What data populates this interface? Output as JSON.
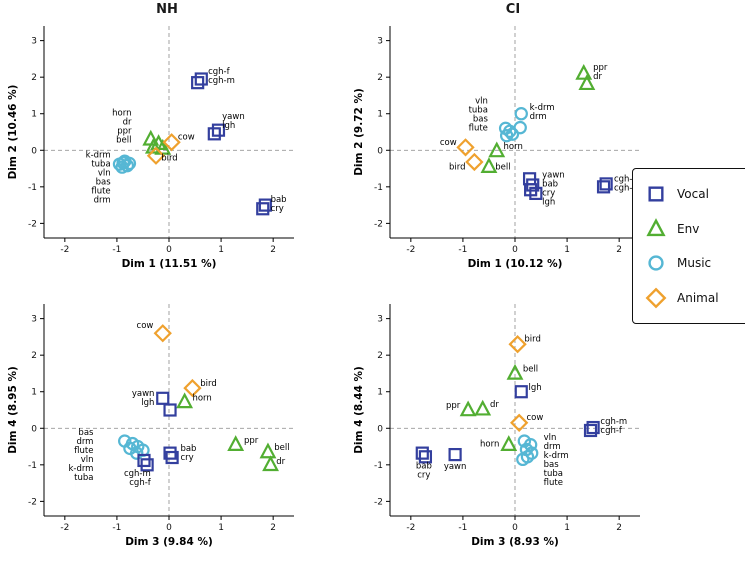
{
  "legend": {
    "items": [
      {
        "label": "Vocal",
        "shape": "square",
        "color": "#333f9e"
      },
      {
        "label": "Env",
        "shape": "triangle",
        "color": "#52ae32"
      },
      {
        "label": "Music",
        "shape": "circle",
        "color": "#56b7d4"
      },
      {
        "label": "Animal",
        "shape": "diamond",
        "color": "#efa12e"
      }
    ]
  },
  "chart_data": [
    {
      "type": "scatter",
      "group": "NH",
      "title": "NH",
      "xlabel": "Dim 1 (11.51 %)",
      "ylabel": "Dim 2 (10.46 %)",
      "xlim": [
        -2.4,
        2.4
      ],
      "ylim": [
        -2.4,
        3.4
      ],
      "xticks": [
        -2,
        -1,
        0,
        1,
        2
      ],
      "yticks": [
        -2,
        -1,
        0,
        1,
        2,
        3
      ],
      "grid": false,
      "points": [
        {
          "label": "cgh-f",
          "cat": "Vocal",
          "x": 0.62,
          "y": 1.95
        },
        {
          "label": "cgh-m",
          "cat": "Vocal",
          "x": 0.55,
          "y": 1.85
        },
        {
          "label": "yawn",
          "cat": "Vocal",
          "x": 0.95,
          "y": 0.55
        },
        {
          "label": "lgh",
          "cat": "Vocal",
          "x": 0.87,
          "y": 0.45
        },
        {
          "label": "bab",
          "cat": "Vocal",
          "x": 1.85,
          "y": -1.5
        },
        {
          "label": "cry",
          "cat": "Vocal",
          "x": 1.8,
          "y": -1.6
        },
        {
          "label": "horn",
          "cat": "Env",
          "x": -0.35,
          "y": 0.3
        },
        {
          "label": "dr",
          "cat": "Env",
          "x": -0.2,
          "y": 0.18
        },
        {
          "label": "ppr",
          "cat": "Env",
          "x": -0.3,
          "y": 0.08
        },
        {
          "label": "bell",
          "cat": "Env",
          "x": -0.12,
          "y": 0.05
        },
        {
          "label": "cow",
          "cat": "Animal",
          "x": 0.05,
          "y": 0.22
        },
        {
          "label": "bird",
          "cat": "Animal",
          "x": -0.25,
          "y": -0.15
        },
        {
          "label": "k-drm",
          "cat": "Music",
          "x": -0.85,
          "y": -0.3
        },
        {
          "label": "tuba",
          "cat": "Music",
          "x": -0.95,
          "y": -0.38
        },
        {
          "label": "vln",
          "cat": "Music",
          "x": -0.9,
          "y": -0.46
        },
        {
          "label": "bas",
          "cat": "Music",
          "x": -0.8,
          "y": -0.42
        },
        {
          "label": "flute",
          "cat": "Music",
          "x": -0.88,
          "y": -0.34
        },
        {
          "label": "drm",
          "cat": "Music",
          "x": -0.76,
          "y": -0.36
        }
      ],
      "annotations": [
        {
          "x": 0.75,
          "y": 2.08,
          "anchor": "start",
          "lines": [
            "cgh-f",
            "cgh-m"
          ]
        },
        {
          "x": 1.02,
          "y": 0.85,
          "anchor": "start",
          "lines": [
            "yawn",
            "lgh"
          ]
        },
        {
          "x": 1.95,
          "y": -1.42,
          "anchor": "start",
          "lines": [
            "bab",
            "cry"
          ]
        },
        {
          "x": 0.17,
          "y": 0.3,
          "anchor": "start",
          "lines": [
            "cow"
          ]
        },
        {
          "x": -0.15,
          "y": -0.28,
          "anchor": "start",
          "lines": [
            "bird"
          ]
        },
        {
          "x": -0.72,
          "y": 0.95,
          "anchor": "end",
          "lines": [
            "horn",
            "dr",
            "ppr",
            "bell"
          ]
        },
        {
          "x": -1.12,
          "y": -0.2,
          "anchor": "end",
          "lines": [
            "k-drm",
            "tuba",
            "vln",
            "bas",
            "flute",
            "drm"
          ]
        }
      ]
    },
    {
      "type": "scatter",
      "group": "CI",
      "title": "CI",
      "xlabel": "Dim 1 (10.12 %)",
      "ylabel": "Dim 2 (9.72 %)",
      "xlim": [
        -2.4,
        2.4
      ],
      "ylim": [
        -2.4,
        3.4
      ],
      "xticks": [
        -2,
        -1,
        0,
        1,
        2
      ],
      "yticks": [
        -2,
        -1,
        0,
        1,
        2,
        3
      ],
      "grid": false,
      "points": [
        {
          "label": "ppr",
          "cat": "Env",
          "x": 1.32,
          "y": 2.1
        },
        {
          "label": "dr",
          "cat": "Env",
          "x": 1.38,
          "y": 1.82
        },
        {
          "label": "k-drm",
          "cat": "Music",
          "x": 0.12,
          "y": 1.0
        },
        {
          "label": "drm",
          "cat": "Music",
          "x": 0.1,
          "y": 0.62
        },
        {
          "label": "vln",
          "cat": "Music",
          "x": -0.18,
          "y": 0.6
        },
        {
          "label": "tuba",
          "cat": "Music",
          "x": -0.1,
          "y": 0.52
        },
        {
          "label": "bas",
          "cat": "Music",
          "x": -0.05,
          "y": 0.44
        },
        {
          "label": "flute",
          "cat": "Music",
          "x": -0.16,
          "y": 0.4
        },
        {
          "label": "cow",
          "cat": "Animal",
          "x": -0.95,
          "y": 0.08
        },
        {
          "label": "horn",
          "cat": "Env",
          "x": -0.35,
          "y": -0.02
        },
        {
          "label": "bird",
          "cat": "Animal",
          "x": -0.78,
          "y": -0.32
        },
        {
          "label": "bell",
          "cat": "Env",
          "x": -0.5,
          "y": -0.45
        },
        {
          "label": "yawn",
          "cat": "Vocal",
          "x": 0.28,
          "y": -0.78
        },
        {
          "label": "bab",
          "cat": "Vocal",
          "x": 0.34,
          "y": -0.95
        },
        {
          "label": "cry",
          "cat": "Vocal",
          "x": 0.3,
          "y": -1.08
        },
        {
          "label": "lgh",
          "cat": "Vocal",
          "x": 0.4,
          "y": -1.18
        },
        {
          "label": "cgh-f",
          "cat": "Vocal",
          "x": 1.75,
          "y": -0.92
        },
        {
          "label": "cgh-m",
          "cat": "Vocal",
          "x": 1.7,
          "y": -1.0
        }
      ],
      "annotations": [
        {
          "x": 1.5,
          "y": 2.2,
          "anchor": "start",
          "lines": [
            "ppr",
            "dr"
          ]
        },
        {
          "x": 0.28,
          "y": 1.1,
          "anchor": "start",
          "lines": [
            "k-drm",
            "drm"
          ]
        },
        {
          "x": -0.52,
          "y": 1.28,
          "anchor": "end",
          "lines": [
            "vln",
            "tuba",
            "bas",
            "flute"
          ]
        },
        {
          "x": -1.12,
          "y": 0.14,
          "anchor": "end",
          "lines": [
            "cow"
          ]
        },
        {
          "x": -0.22,
          "y": 0.04,
          "anchor": "start",
          "lines": [
            "horn"
          ]
        },
        {
          "x": -0.95,
          "y": -0.52,
          "anchor": "end",
          "lines": [
            "bird"
          ]
        },
        {
          "x": -0.38,
          "y": -0.52,
          "anchor": "start",
          "lines": [
            "bell"
          ]
        },
        {
          "x": 0.52,
          "y": -0.75,
          "anchor": "start",
          "lines": [
            "yawn",
            "bab",
            "cry",
            "lgh"
          ]
        },
        {
          "x": 1.9,
          "y": -0.85,
          "anchor": "start",
          "lines": [
            "cgh-f",
            "cgh-m"
          ]
        }
      ]
    },
    {
      "type": "scatter",
      "group": "NH",
      "title": "",
      "xlabel": "Dim 3 (9.84 %)",
      "ylabel": "Dim 4 (8.95 %)",
      "xlim": [
        -2.4,
        2.4
      ],
      "ylim": [
        -2.4,
        3.4
      ],
      "xticks": [
        -2,
        -1,
        0,
        1,
        2
      ],
      "yticks": [
        -2,
        -1,
        0,
        1,
        2,
        3
      ],
      "grid": false,
      "points": [
        {
          "label": "cow",
          "cat": "Animal",
          "x": -0.12,
          "y": 2.6
        },
        {
          "label": "bird",
          "cat": "Animal",
          "x": 0.45,
          "y": 1.1
        },
        {
          "label": "horn",
          "cat": "Env",
          "x": 0.3,
          "y": 0.72
        },
        {
          "label": "yawn",
          "cat": "Vocal",
          "x": -0.12,
          "y": 0.82
        },
        {
          "label": "lgh",
          "cat": "Vocal",
          "x": 0.02,
          "y": 0.5
        },
        {
          "label": "bas",
          "cat": "Music",
          "x": -0.85,
          "y": -0.35
        },
        {
          "label": "drm",
          "cat": "Music",
          "x": -0.7,
          "y": -0.42
        },
        {
          "label": "flute",
          "cat": "Music",
          "x": -0.75,
          "y": -0.55
        },
        {
          "label": "vln",
          "cat": "Music",
          "x": -0.6,
          "y": -0.5
        },
        {
          "label": "k-drm",
          "cat": "Music",
          "x": -0.5,
          "y": -0.6
        },
        {
          "label": "tuba",
          "cat": "Music",
          "x": -0.62,
          "y": -0.68
        },
        {
          "label": "bab",
          "cat": "Vocal",
          "x": 0.02,
          "y": -0.68
        },
        {
          "label": "cry",
          "cat": "Vocal",
          "x": 0.06,
          "y": -0.8
        },
        {
          "label": "ppr",
          "cat": "Env",
          "x": 1.28,
          "y": -0.45
        },
        {
          "label": "bell",
          "cat": "Env",
          "x": 1.9,
          "y": -0.65
        },
        {
          "label": "dr",
          "cat": "Env",
          "x": 1.95,
          "y": -1.0
        },
        {
          "label": "cgh-m",
          "cat": "Vocal",
          "x": -0.48,
          "y": -0.88
        },
        {
          "label": "cgh-f",
          "cat": "Vocal",
          "x": -0.42,
          "y": -1.0
        }
      ],
      "annotations": [
        {
          "x": -0.3,
          "y": 2.75,
          "anchor": "end",
          "lines": [
            "cow"
          ]
        },
        {
          "x": 0.6,
          "y": 1.15,
          "anchor": "start",
          "lines": [
            "bird"
          ]
        },
        {
          "x": 0.45,
          "y": 0.76,
          "anchor": "start",
          "lines": [
            "horn"
          ]
        },
        {
          "x": -0.28,
          "y": 0.88,
          "anchor": "end",
          "lines": [
            "yawn",
            "lgh"
          ]
        },
        {
          "x": -1.45,
          "y": -0.18,
          "anchor": "end",
          "lines": [
            "bas",
            "drm",
            "flute",
            "vln",
            "k-drm",
            "tuba"
          ]
        },
        {
          "x": 0.22,
          "y": -0.62,
          "anchor": "start",
          "lines": [
            "bab",
            "cry"
          ]
        },
        {
          "x": 1.44,
          "y": -0.4,
          "anchor": "start",
          "lines": [
            "ppr"
          ]
        },
        {
          "x": 2.02,
          "y": -0.6,
          "anchor": "start",
          "lines": [
            "bell"
          ]
        },
        {
          "x": 2.06,
          "y": -0.98,
          "anchor": "start",
          "lines": [
            "dr"
          ]
        },
        {
          "x": -0.35,
          "y": -1.3,
          "anchor": "end",
          "lines": [
            "cgh-m",
            "cgh-f"
          ]
        }
      ]
    },
    {
      "type": "scatter",
      "group": "CI",
      "title": "",
      "xlabel": "Dim 3 (8.93 %)",
      "ylabel": "Dim 4 (8.44 %)",
      "xlim": [
        -2.4,
        2.4
      ],
      "ylim": [
        -2.4,
        3.4
      ],
      "xticks": [
        -2,
        -1,
        0,
        1,
        2
      ],
      "yticks": [
        -2,
        -1,
        0,
        1,
        2,
        3
      ],
      "grid": false,
      "points": [
        {
          "label": "bird",
          "cat": "Animal",
          "x": 0.05,
          "y": 2.3
        },
        {
          "label": "bell",
          "cat": "Env",
          "x": 0.0,
          "y": 1.5
        },
        {
          "label": "lgh",
          "cat": "Vocal",
          "x": 0.12,
          "y": 1.0
        },
        {
          "label": "ppr",
          "cat": "Env",
          "x": -0.9,
          "y": 0.5
        },
        {
          "label": "dr",
          "cat": "Env",
          "x": -0.62,
          "y": 0.52
        },
        {
          "label": "cow",
          "cat": "Animal",
          "x": 0.08,
          "y": 0.15
        },
        {
          "label": "cgh-m",
          "cat": "Vocal",
          "x": 1.5,
          "y": 0.02
        },
        {
          "label": "cgh-f",
          "cat": "Vocal",
          "x": 1.45,
          "y": -0.06
        },
        {
          "label": "horn",
          "cat": "Env",
          "x": -0.12,
          "y": -0.45
        },
        {
          "label": "vln",
          "cat": "Music",
          "x": 0.18,
          "y": -0.35
        },
        {
          "label": "drm",
          "cat": "Music",
          "x": 0.3,
          "y": -0.45
        },
        {
          "label": "k-drm",
          "cat": "Music",
          "x": 0.22,
          "y": -0.58
        },
        {
          "label": "bas",
          "cat": "Music",
          "x": 0.32,
          "y": -0.68
        },
        {
          "label": "tuba",
          "cat": "Music",
          "x": 0.24,
          "y": -0.78
        },
        {
          "label": "flute",
          "cat": "Music",
          "x": 0.15,
          "y": -0.85
        },
        {
          "label": "bab",
          "cat": "Vocal",
          "x": -1.78,
          "y": -0.68
        },
        {
          "label": "cry",
          "cat": "Vocal",
          "x": -1.72,
          "y": -0.78
        },
        {
          "label": "yawn",
          "cat": "Vocal",
          "x": -1.15,
          "y": -0.72
        }
      ],
      "annotations": [
        {
          "x": 0.18,
          "y": 2.38,
          "anchor": "start",
          "lines": [
            "bird"
          ]
        },
        {
          "x": 0.15,
          "y": 1.56,
          "anchor": "start",
          "lines": [
            "bell"
          ]
        },
        {
          "x": 0.26,
          "y": 1.05,
          "anchor": "start",
          "lines": [
            "lgh"
          ]
        },
        {
          "x": -1.05,
          "y": 0.56,
          "anchor": "end",
          "lines": [
            "ppr"
          ]
        },
        {
          "x": -0.48,
          "y": 0.58,
          "anchor": "start",
          "lines": [
            "dr"
          ]
        },
        {
          "x": 0.22,
          "y": 0.22,
          "anchor": "start",
          "lines": [
            "cow"
          ]
        },
        {
          "x": 1.64,
          "y": 0.12,
          "anchor": "start",
          "lines": [
            "cgh-m",
            "cgh-f"
          ]
        },
        {
          "x": -0.3,
          "y": -0.5,
          "anchor": "end",
          "lines": [
            "horn"
          ]
        },
        {
          "x": 0.55,
          "y": -0.32,
          "anchor": "start",
          "lines": [
            "vln",
            "drm",
            "k-drm",
            "bas",
            "tuba",
            "flute"
          ]
        },
        {
          "x": -1.75,
          "y": -1.1,
          "anchor": "middle",
          "lines": [
            "bab",
            "cry"
          ]
        },
        {
          "x": -1.15,
          "y": -1.12,
          "anchor": "middle",
          "lines": [
            "yawn"
          ]
        }
      ]
    }
  ]
}
